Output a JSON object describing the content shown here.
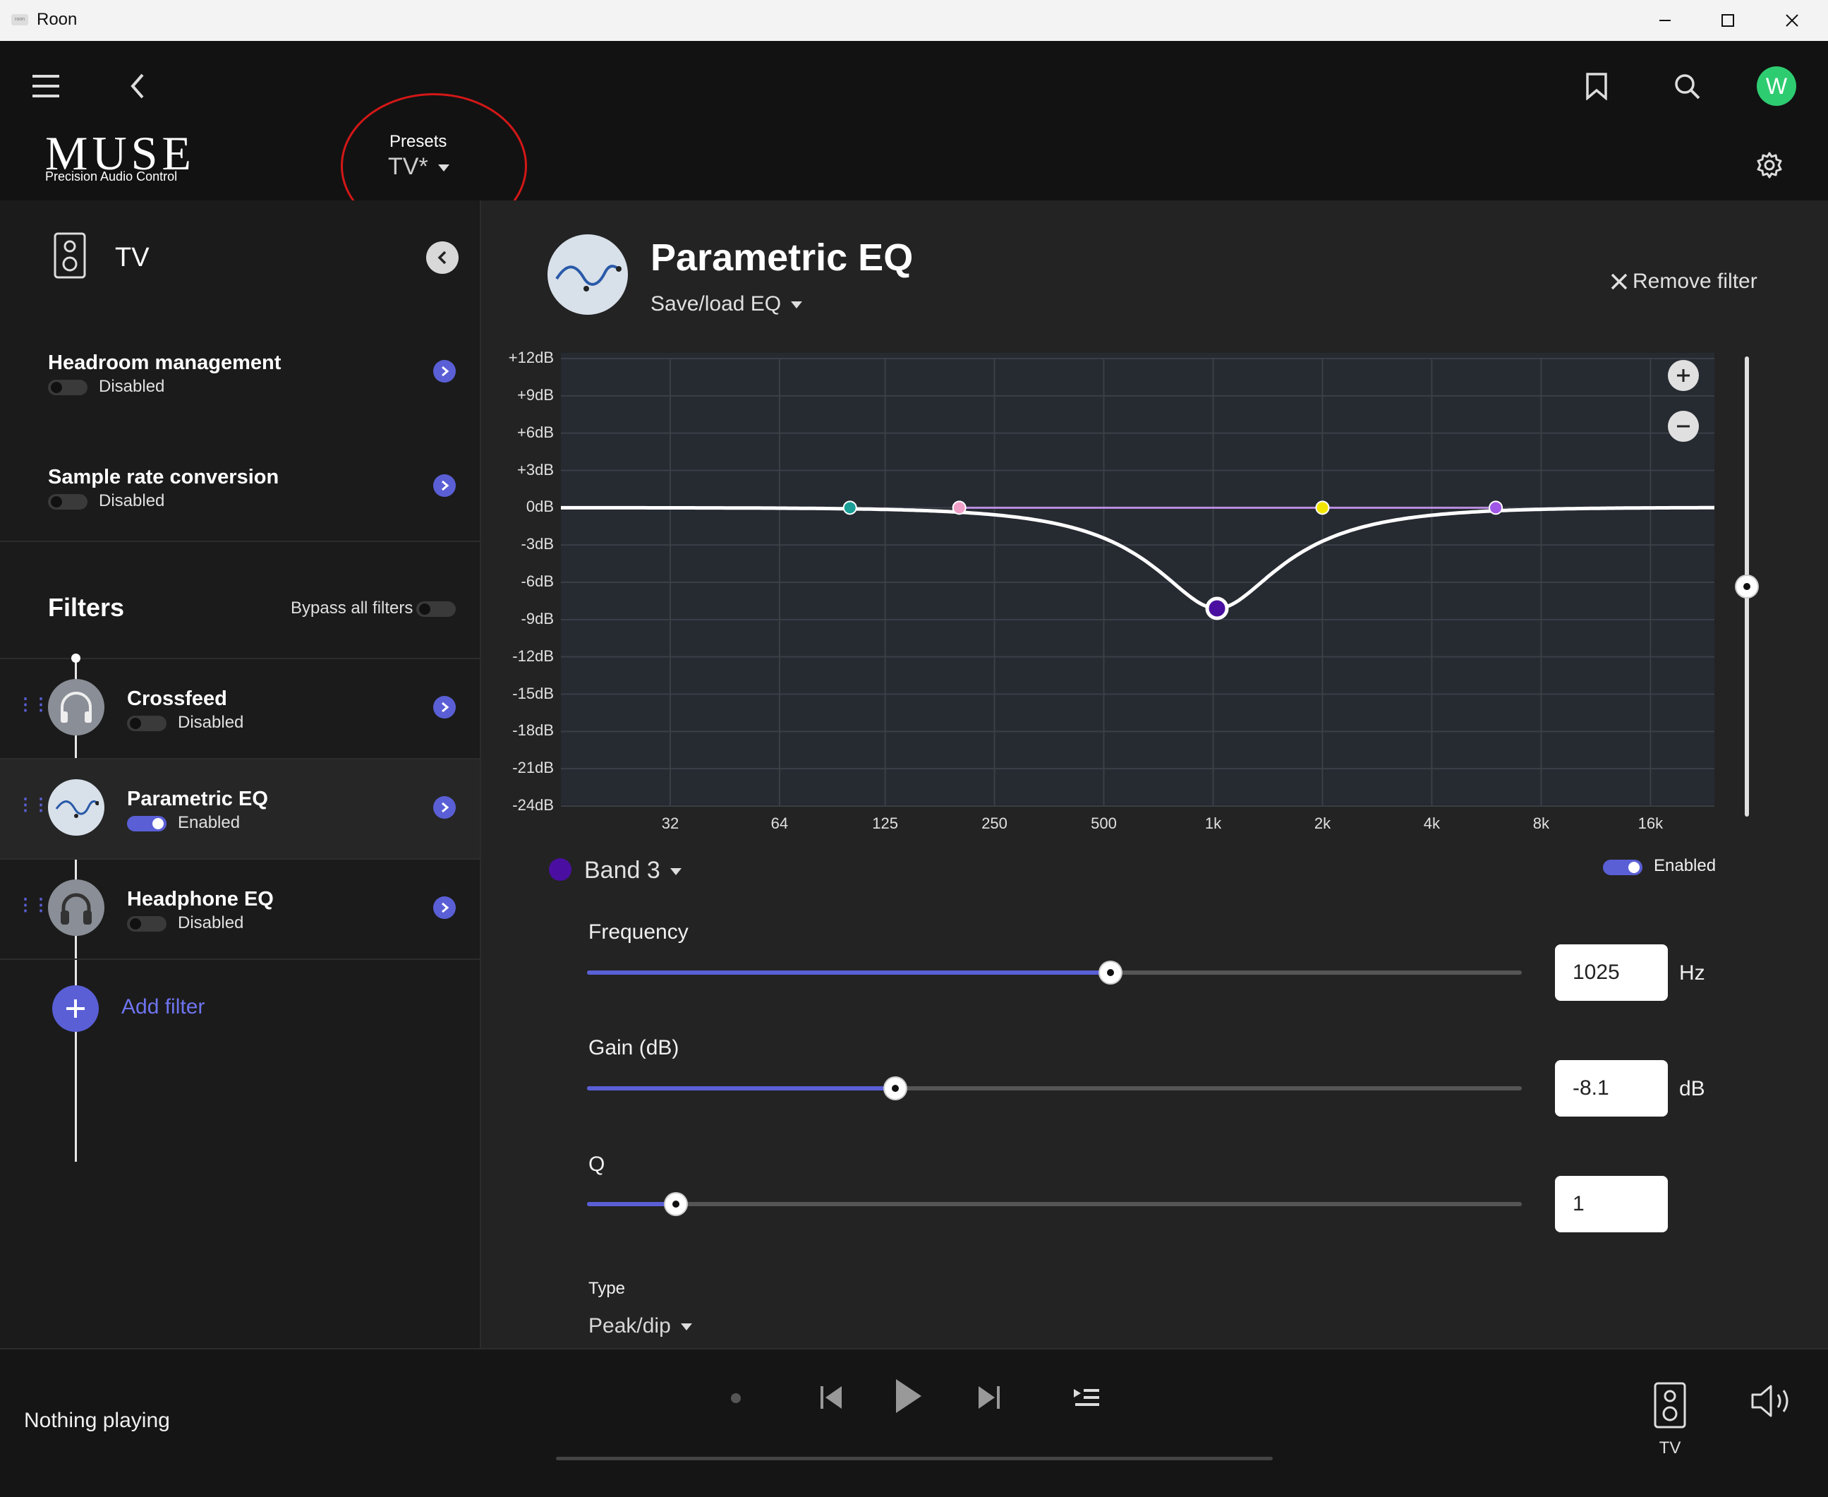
{
  "window": {
    "title": "Roon",
    "icon_label": "roon"
  },
  "header": {
    "logo": "MUSE",
    "logo_subtitle": "Precision Audio Control",
    "presets_label": "Presets",
    "preset_value": "TV*",
    "avatar_letter": "W"
  },
  "sidebar": {
    "device_name": "TV",
    "settings": [
      {
        "title": "Headroom management",
        "status": "Disabled"
      },
      {
        "title": "Sample rate conversion",
        "status": "Disabled"
      }
    ],
    "filters_title": "Filters",
    "bypass_label": "Bypass all filters",
    "filters": [
      {
        "name": "Crossfeed",
        "status": "Disabled"
      },
      {
        "name": "Parametric EQ",
        "status": "Enabled"
      },
      {
        "name": "Headphone EQ",
        "status": "Disabled"
      }
    ],
    "add_filter_label": "Add filter"
  },
  "main": {
    "title": "Parametric EQ",
    "save_load": "Save/load EQ",
    "remove_filter": "Remove filter",
    "band_label": "Band 3",
    "band_enabled_label": "Enabled",
    "frequency_label": "Frequency",
    "frequency_value": "1025",
    "frequency_unit": "Hz",
    "frequency_position": 0.56,
    "gain_label": "Gain (dB)",
    "gain_value": "-8.1",
    "gain_unit": "dB",
    "gain_position": 0.33,
    "q_label": "Q",
    "q_value": "1",
    "q_position": 0.095,
    "type_label": "Type",
    "type_value": "Peak/dip"
  },
  "chart_data": {
    "type": "line",
    "y_ticks": [
      "+12dB",
      "+9dB",
      "+6dB",
      "+3dB",
      "0dB",
      "-3dB",
      "-6dB",
      "-9dB",
      "-12dB",
      "-15dB",
      "-18dB",
      "-21dB",
      "-24dB"
    ],
    "x_ticks": [
      "32",
      "64",
      "125",
      "250",
      "500",
      "1k",
      "2k",
      "4k",
      "8k",
      "16k"
    ],
    "x_tick_values": [
      32,
      64,
      125,
      250,
      500,
      1000,
      2000,
      4000,
      8000,
      16000
    ],
    "ylim": [
      -24,
      12
    ],
    "xlim_hz": [
      16,
      24000
    ],
    "x_scale": "log",
    "bands": [
      {
        "freq_hz": 100,
        "gain_db": 0,
        "color": "#1a9e96"
      },
      {
        "freq_hz": 200,
        "gain_db": 0,
        "color": "#f0a0c8"
      },
      {
        "freq_hz": 1025,
        "gain_db": -8.1,
        "color": "#4a0fa0",
        "selected": true
      },
      {
        "freq_hz": 2000,
        "gain_db": 0,
        "color": "#f2e600"
      },
      {
        "freq_hz": 6000,
        "gain_db": 0,
        "color": "#a056e6"
      }
    ],
    "curve": {
      "center_hz": 1025,
      "gain_db": -8.1,
      "q": 1
    }
  },
  "player": {
    "status": "Nothing playing",
    "zone_label": "TV"
  },
  "colors": {
    "accent": "#5a5fd6",
    "annotation": "#d41717"
  }
}
